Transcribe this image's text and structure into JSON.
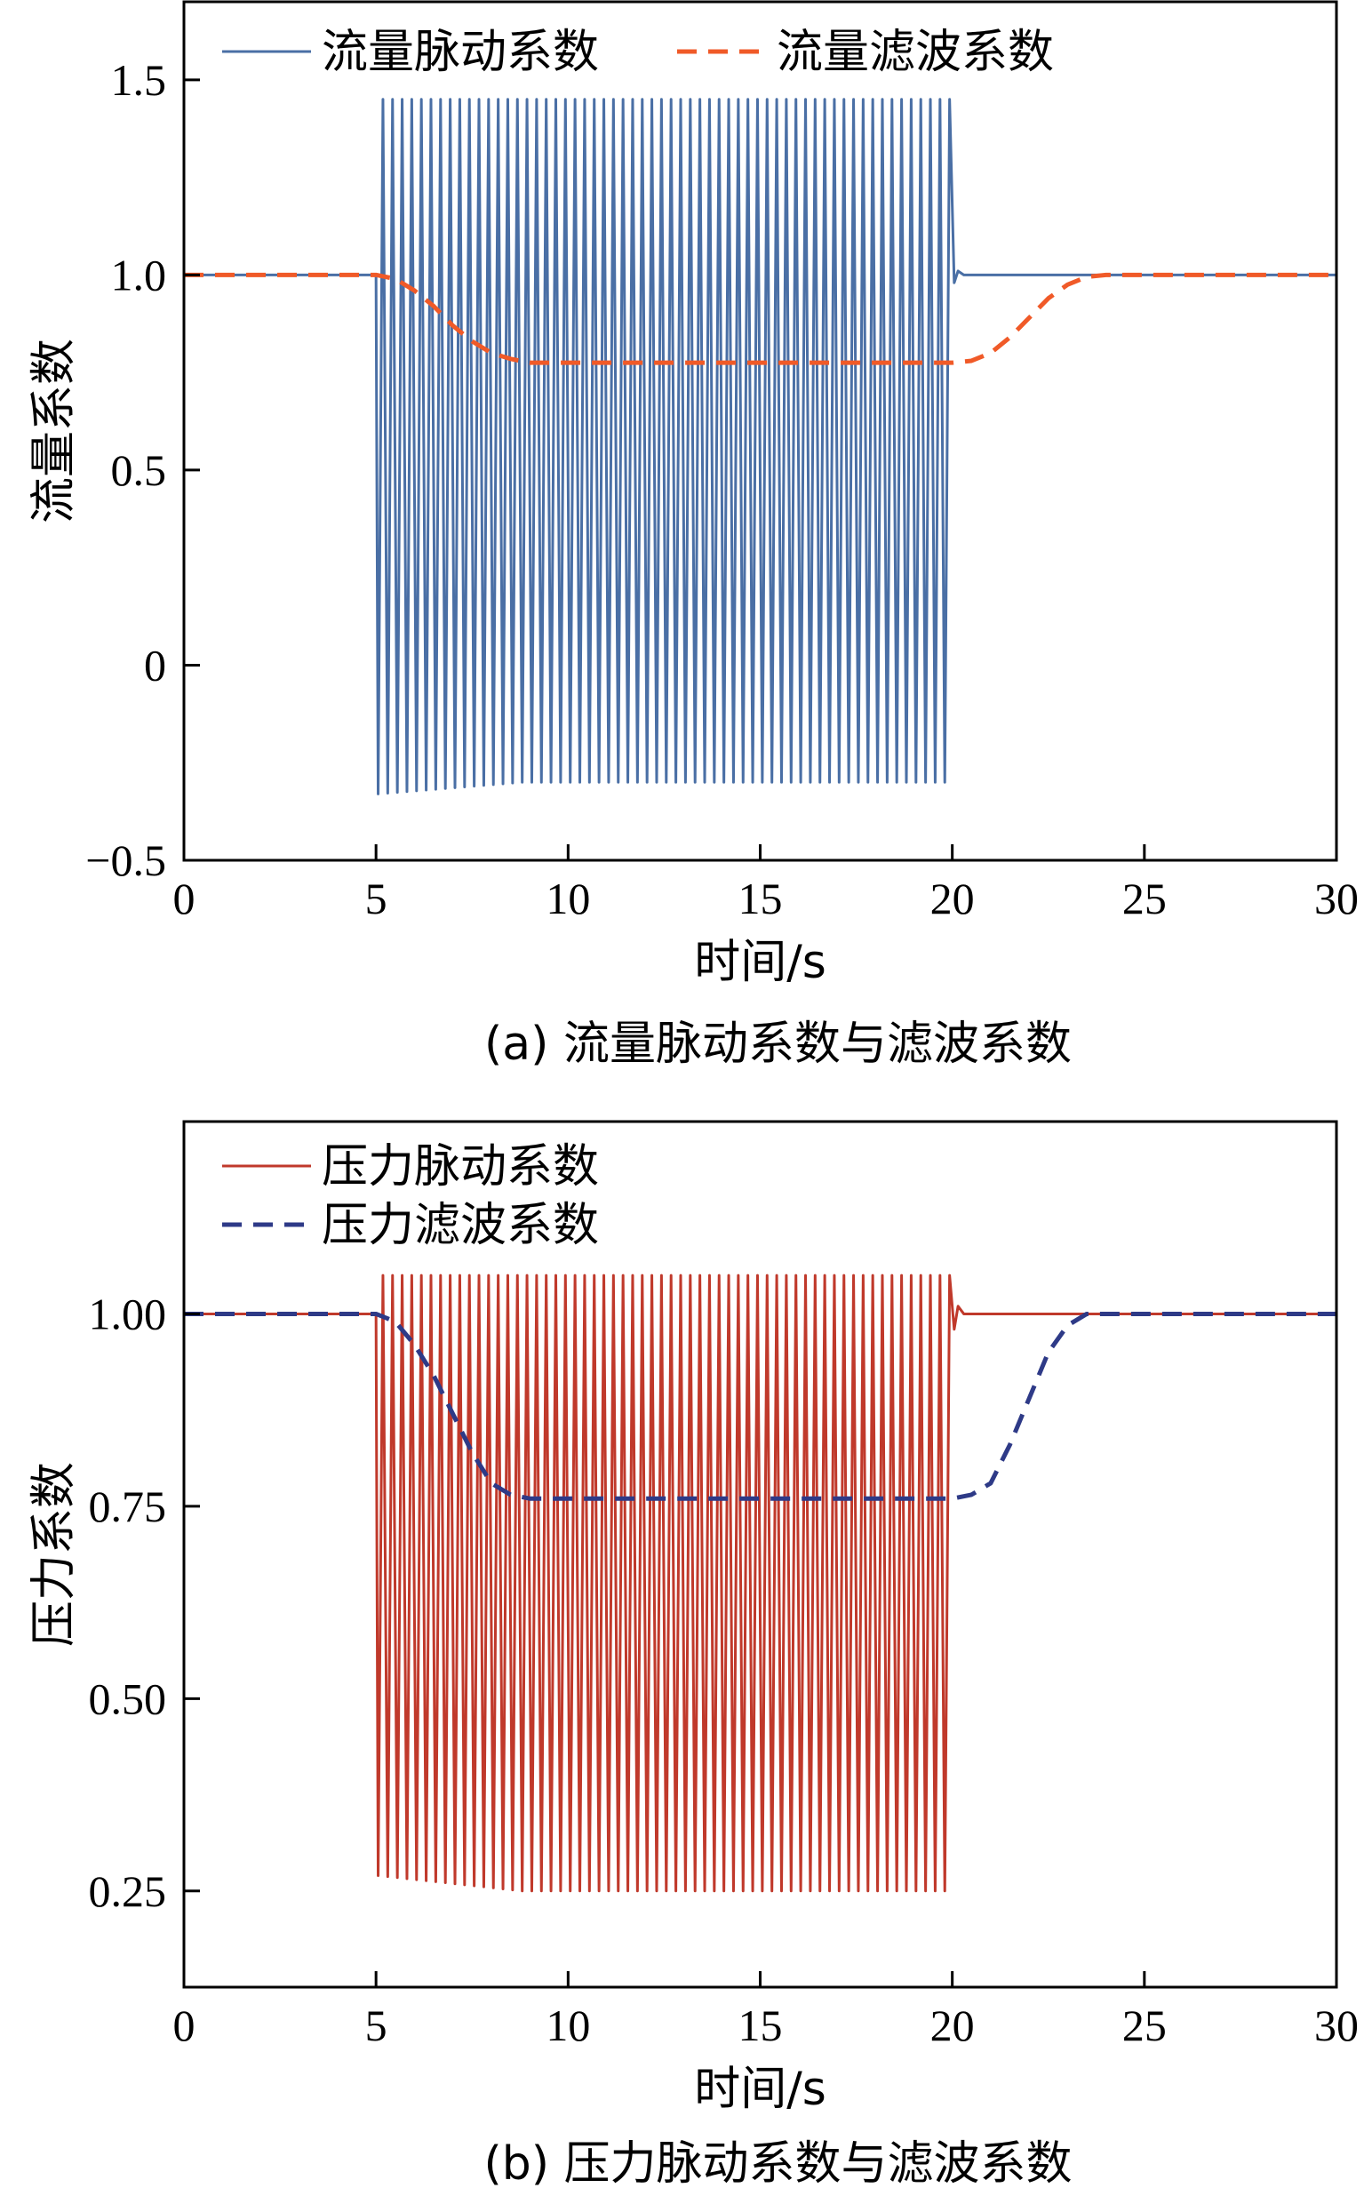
{
  "chart_data": [
    {
      "type": "line",
      "caption": "(a) 流量脉动系数与滤波系数",
      "xlabel": "时间/s",
      "ylabel": "流量系数",
      "xlim": [
        0,
        30
      ],
      "ylim": [
        -0.5,
        1.7
      ],
      "x_ticks": [
        0,
        5,
        10,
        15,
        20,
        25,
        30
      ],
      "x_tick_labels": [
        "0",
        "5",
        "10",
        "15",
        "20",
        "25",
        "30"
      ],
      "y_ticks": [
        -0.5,
        0,
        0.5,
        1.0,
        1.5
      ],
      "y_tick_labels": [
        "−0.5",
        "0",
        "0.5",
        "1.0",
        "1.5"
      ],
      "grid": false,
      "legend_placement": "top-left",
      "legend_layout": "row",
      "series": [
        {
          "name": "流量脉动系数",
          "style": "solid",
          "color": "#4a6fa5",
          "oscillation": {
            "baseline": 1.0,
            "start": 5.0,
            "end": 20.0,
            "period": 0.25,
            "max": 1.45,
            "min": -0.3,
            "min_first": -0.33
          }
        },
        {
          "name": "流量滤波系数",
          "style": "dashed",
          "color": "#f05a28",
          "x": [
            0,
            5,
            5.5,
            6,
            6.5,
            7,
            7.5,
            8,
            8.5,
            9,
            10,
            15,
            20,
            20.5,
            21,
            21.5,
            22,
            22.5,
            23,
            23.5,
            24,
            25,
            30
          ],
          "y": [
            1.0,
            1.0,
            0.99,
            0.96,
            0.92,
            0.87,
            0.83,
            0.8,
            0.785,
            0.775,
            0.775,
            0.775,
            0.775,
            0.78,
            0.8,
            0.84,
            0.89,
            0.94,
            0.975,
            0.995,
            1.0,
            1.0,
            1.0
          ]
        }
      ]
    },
    {
      "type": "line",
      "caption": "(b) 压力脉动系数与滤波系数",
      "xlabel": "时间/s",
      "ylabel": "压力系数",
      "xlim": [
        0,
        30
      ],
      "ylim": [
        0.125,
        1.25
      ],
      "x_ticks": [
        0,
        5,
        10,
        15,
        20,
        25,
        30
      ],
      "x_tick_labels": [
        "0",
        "5",
        "10",
        "15",
        "20",
        "25",
        "30"
      ],
      "y_ticks": [
        0.25,
        0.5,
        0.75,
        1.0
      ],
      "y_tick_labels": [
        "0.25",
        "0.50",
        "0.75",
        "1.00"
      ],
      "grid": false,
      "legend_placement": "top-left",
      "legend_layout": "column",
      "series": [
        {
          "name": "压力脉动系数",
          "style": "solid",
          "color": "#c0392b",
          "oscillation": {
            "baseline": 1.0,
            "start": 5.0,
            "end": 20.0,
            "period": 0.25,
            "max": 1.05,
            "min": 0.25,
            "min_first": 0.27
          }
        },
        {
          "name": "压力滤波系数",
          "style": "dashed",
          "color": "#2e3a87",
          "x": [
            0,
            5,
            5.5,
            6,
            6.5,
            7,
            7.5,
            8,
            8.5,
            9,
            10,
            15,
            20,
            20.5,
            21,
            21.5,
            22,
            22.5,
            23,
            23.5,
            24,
            25,
            30
          ],
          "y": [
            1.0,
            1.0,
            0.99,
            0.96,
            0.92,
            0.87,
            0.82,
            0.78,
            0.765,
            0.76,
            0.76,
            0.76,
            0.76,
            0.765,
            0.78,
            0.83,
            0.89,
            0.95,
            0.985,
            1.0,
            1.0,
            1.0,
            1.0
          ]
        }
      ]
    }
  ]
}
